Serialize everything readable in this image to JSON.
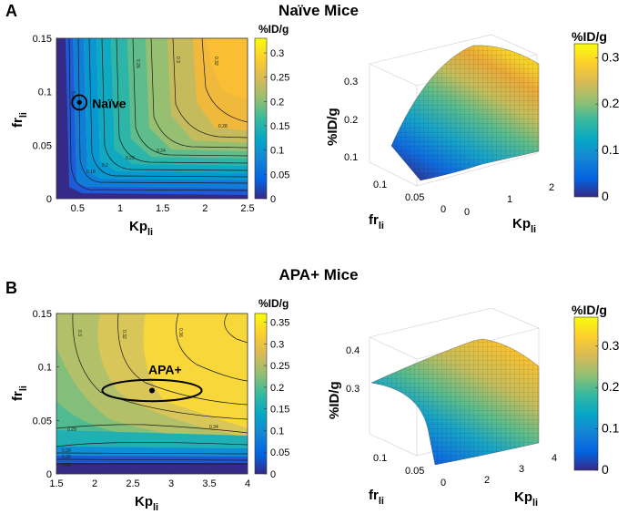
{
  "panel_a": {
    "letter": "A",
    "title": "Naïve Mice"
  },
  "panel_b": {
    "letter": "B",
    "title": "APA+ Mice"
  },
  "chart_data": [
    {
      "type": "heatmap",
      "name": "naive-contour",
      "xlabel": "Kp",
      "xlabel_sub": "li",
      "ylabel": "fr",
      "ylabel_sub": "li",
      "xlim": [
        0.25,
        2.5
      ],
      "ylim": [
        0,
        0.15
      ],
      "xticks": [
        "0.5",
        "1",
        "1.5",
        "2",
        "2.5"
      ],
      "xtick_values": [
        0.5,
        1,
        1.5,
        2,
        2.5
      ],
      "yticks": [
        "0",
        "0.05",
        "0.1",
        "0.15"
      ],
      "ytick_values": [
        0,
        0.05,
        0.1,
        0.15
      ],
      "colorbar": {
        "title": "%ID/g",
        "ticks": [
          "0",
          "0.05",
          "0.1",
          "0.15",
          "0.2",
          "0.25",
          "0.3"
        ],
        "tick_values": [
          0,
          0.05,
          0.1,
          0.15,
          0.2,
          0.25,
          0.3
        ],
        "range": [
          0,
          0.33
        ]
      },
      "contours": [
        "0.16",
        "0.18",
        "0.2",
        "0.22",
        "0.24",
        "0.26",
        "0.28",
        "0.3",
        "0.32"
      ],
      "contour_values": [
        0.16,
        0.18,
        0.2,
        0.22,
        0.24,
        0.26,
        0.28,
        0.3,
        0.32
      ],
      "annotation": {
        "label": "Naïve",
        "x": 0.52,
        "y": 0.09
      }
    },
    {
      "type": "surface",
      "name": "naive-surface",
      "zlabel": "%ID/g",
      "xlabel": "Kp",
      "xlabel_sub": "li",
      "ylabel": "fr",
      "ylabel_sub": "li",
      "zticks": [
        "0.1",
        "0.2",
        "0.3"
      ],
      "xticks": [
        "0",
        "1",
        "2"
      ],
      "yticks": [
        "0.1",
        "0.05",
        "0"
      ],
      "colorbar": {
        "title": "%ID/g",
        "ticks": [
          "0",
          "0.1",
          "0.2",
          "0.3"
        ],
        "tick_values": [
          0,
          0.1,
          0.2,
          0.3
        ],
        "range": [
          0,
          0.33
        ]
      }
    },
    {
      "type": "heatmap",
      "name": "apa-contour",
      "xlabel": "Kp",
      "xlabel_sub": "li",
      "ylabel": "fr",
      "ylabel_sub": "li",
      "xlim": [
        1.5,
        4
      ],
      "ylim": [
        0,
        0.15
      ],
      "xticks": [
        "1.5",
        "2",
        "2.5",
        "3",
        "3.5",
        "4"
      ],
      "xtick_values": [
        1.5,
        2,
        2.5,
        3,
        3.5,
        4
      ],
      "yticks": [
        "0",
        "0.05",
        "0.1",
        "0.15"
      ],
      "ytick_values": [
        0,
        0.05,
        0.1,
        0.15
      ],
      "colorbar": {
        "title": "%ID/g",
        "ticks": [
          "0",
          "0.05",
          "0.1",
          "0.15",
          "0.2",
          "0.25",
          "0.3",
          "0.35"
        ],
        "tick_values": [
          0,
          0.05,
          0.1,
          0.15,
          0.2,
          0.25,
          0.3,
          0.35
        ],
        "range": [
          0,
          0.37
        ]
      },
      "contours": [
        "0.24",
        "0.26",
        "0.28",
        "0.29",
        "0.3",
        "0.32",
        "0.34",
        "0.36"
      ],
      "contour_values": [
        0.24,
        0.26,
        0.28,
        0.29,
        0.3,
        0.32,
        0.34,
        0.36
      ],
      "annotation": {
        "label": "APA+",
        "x": 2.75,
        "y": 0.078,
        "ellipse_x": [
          2.1,
          3.4
        ],
        "ellipse_y": [
          0.068,
          0.088
        ]
      }
    },
    {
      "type": "surface",
      "name": "apa-surface",
      "zlabel": "%ID/g",
      "xlabel": "Kp",
      "xlabel_sub": "li",
      "ylabel": "fr",
      "ylabel_sub": "li",
      "zticks": [
        "0.3",
        "0.4"
      ],
      "xticks": [
        "2",
        "3",
        "4"
      ],
      "yticks": [
        "0.1",
        "0.05",
        "0"
      ],
      "colorbar": {
        "title": "%ID/g",
        "ticks": [
          "0",
          "0.1",
          "0.2",
          "0.3"
        ],
        "tick_values": [
          0,
          0.1,
          0.2,
          0.3
        ],
        "range": [
          0,
          0.37
        ]
      }
    }
  ]
}
